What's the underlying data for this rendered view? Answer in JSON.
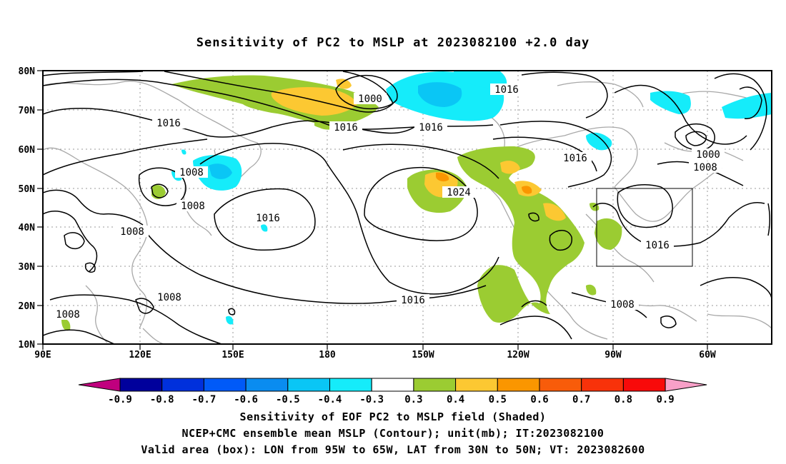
{
  "title": "Sensitivity of PC2 to MSLP at 2023082100 +2.0 day",
  "axes": {
    "lat_labels": [
      "80N",
      "70N",
      "60N",
      "50N",
      "40N",
      "30N",
      "20N",
      "10N"
    ],
    "lon_labels": [
      "90E",
      "120E",
      "150E",
      "180",
      "150W",
      "120W",
      "90W",
      "60W"
    ]
  },
  "contour_labels": [
    "1000",
    "1016",
    "1016",
    "1016",
    "1016",
    "1008",
    "1008",
    "1016",
    "1024",
    "1008",
    "1008",
    "1016",
    "1000",
    "1008",
    "1016",
    "1016",
    "1008",
    "1008"
  ],
  "colorbar": {
    "labels": [
      "-0.9",
      "-0.8",
      "-0.7",
      "-0.6",
      "-0.5",
      "-0.4",
      "-0.3",
      "0.3",
      "0.4",
      "0.5",
      "0.6",
      "0.7",
      "0.8",
      "0.9"
    ],
    "colors": [
      "#c0007e",
      "#00009c",
      "#0030dc",
      "#005af8",
      "#0a8cf0",
      "#0ac6f5",
      "#15ecfa",
      "#ffffff",
      "#9bcc32",
      "#fcc832",
      "#fa9600",
      "#f85c0a",
      "#f8320a",
      "#f80a0a",
      "#f8a0c8"
    ]
  },
  "footer": {
    "line1": "Sensitivity of EOF PC2 to MSLP field (Shaded)",
    "line2": "NCEP+CMC ensemble mean MSLP (Contour); unit(mb); IT:2023082100",
    "line3": "Valid area (box): LON from 95W to 65W, LAT from 30N to 50N; VT: 2023082600"
  },
  "shading_colors": {
    "pos_03": "#9bcc32",
    "pos_04": "#fcc832",
    "pos_05": "#fa9600",
    "neg_03": "#15ecfa",
    "neg_04": "#0ac6f5"
  }
}
